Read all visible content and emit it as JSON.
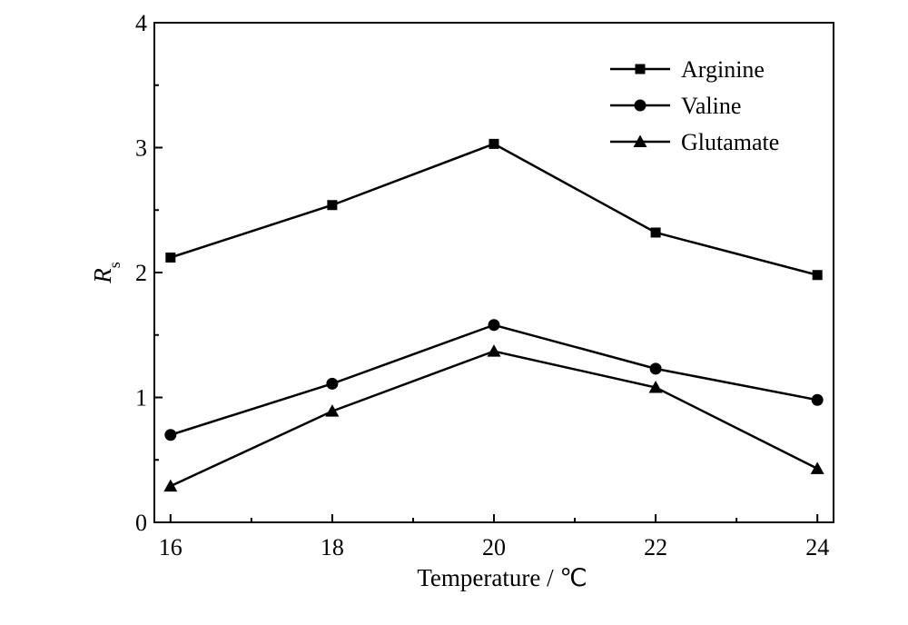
{
  "chart_data": {
    "type": "line",
    "title": "",
    "xlabel": "Temperature / ℃",
    "ylabel": "R",
    "ylabel_sub": "s",
    "x": [
      16,
      18,
      20,
      22,
      24
    ],
    "xlim": [
      15.8,
      24.2
    ],
    "ylim": [
      0,
      4
    ],
    "xticks": [
      "16",
      "18",
      "20",
      "22",
      "24"
    ],
    "yticks": [
      "0",
      "1",
      "2",
      "3",
      "4"
    ],
    "grid": false,
    "legend_position": "top-right",
    "series": [
      {
        "name": "Arginine",
        "marker": "square",
        "values": [
          2.12,
          2.54,
          3.03,
          2.32,
          1.98
        ]
      },
      {
        "name": "Valine",
        "marker": "circle",
        "values": [
          0.7,
          1.11,
          1.58,
          1.23,
          0.98
        ]
      },
      {
        "name": "Glutamate",
        "marker": "triangle",
        "values": [
          0.29,
          0.89,
          1.37,
          1.08,
          0.43
        ]
      }
    ]
  }
}
